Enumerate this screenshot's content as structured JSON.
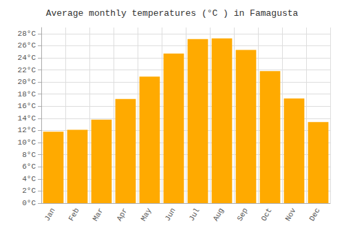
{
  "chart_data": {
    "type": "bar",
    "title": "Average monthly temperatures (°C ) in Famagusta",
    "categories": [
      "Jan",
      "Feb",
      "Mar",
      "Apr",
      "May",
      "Jun",
      "Jul",
      "Aug",
      "Sep",
      "Oct",
      "Nov",
      "Dec"
    ],
    "values": [
      11.8,
      12.1,
      13.8,
      17.2,
      20.9,
      24.7,
      27.1,
      27.2,
      25.3,
      21.8,
      17.3,
      13.4
    ],
    "color": "#FFAA00",
    "ylim": [
      0,
      29
    ],
    "yticks": [
      {
        "value": 0,
        "label": "0°C"
      },
      {
        "value": 2,
        "label": "2°C"
      },
      {
        "value": 4,
        "label": "4°C"
      },
      {
        "value": 6,
        "label": "6°C"
      },
      {
        "value": 8,
        "label": "8°C"
      },
      {
        "value": 10,
        "label": "10°C"
      },
      {
        "value": 12,
        "label": "12°C"
      },
      {
        "value": 14,
        "label": "14°C"
      },
      {
        "value": 16,
        "label": "16°C"
      },
      {
        "value": 18,
        "label": "18°C"
      },
      {
        "value": 20,
        "label": "20°C"
      },
      {
        "value": 22,
        "label": "22°C"
      },
      {
        "value": 24,
        "label": "24°C"
      },
      {
        "value": 26,
        "label": "26°C"
      },
      {
        "value": 28,
        "label": "28°C"
      }
    ],
    "grid": true
  }
}
